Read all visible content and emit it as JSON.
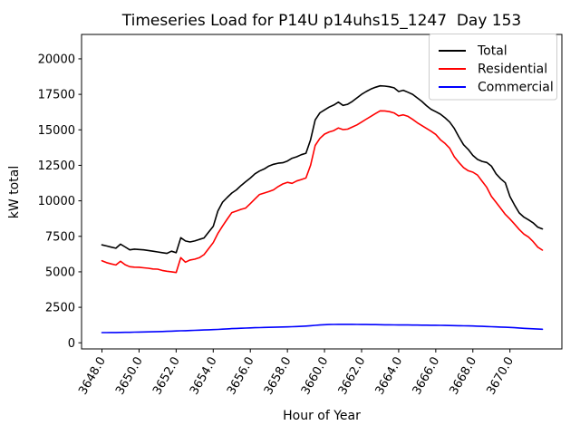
{
  "title": "Timeseries Load for P14U p14uhs15_1247  Day 153",
  "chart_data": {
    "type": "line",
    "title": "Timeseries Load for P14U p14uhs15_1247  Day 153",
    "xlabel": "Hour of Year",
    "ylabel": "kW total",
    "xlim": [
      3646.9,
      3672.8
    ],
    "ylim": [
      -430,
      21720
    ],
    "grid": false,
    "legend_position": "upper right",
    "xticks": [
      {
        "v": 3648,
        "label": "3648.0"
      },
      {
        "v": 3650,
        "label": "3650.0"
      },
      {
        "v": 3652,
        "label": "3652.0"
      },
      {
        "v": 3654,
        "label": "3654.0"
      },
      {
        "v": 3656,
        "label": "3656.0"
      },
      {
        "v": 3658,
        "label": "3658.0"
      },
      {
        "v": 3660,
        "label": "3660.0"
      },
      {
        "v": 3662,
        "label": "3662.0"
      },
      {
        "v": 3664,
        "label": "3664.0"
      },
      {
        "v": 3666,
        "label": "3666.0"
      },
      {
        "v": 3668,
        "label": "3668.0"
      },
      {
        "v": 3670,
        "label": "3670.0"
      }
    ],
    "yticks": [
      {
        "v": 0,
        "label": "0"
      },
      {
        "v": 2500,
        "label": "2500"
      },
      {
        "v": 5000,
        "label": "5000"
      },
      {
        "v": 7500,
        "label": "7500"
      },
      {
        "v": 10000,
        "label": "10000"
      },
      {
        "v": 12500,
        "label": "12500"
      },
      {
        "v": 15000,
        "label": "15000"
      },
      {
        "v": 17500,
        "label": "17500"
      },
      {
        "v": 20000,
        "label": "20000"
      }
    ],
    "x_start": 3648.0,
    "x_step": 0.25,
    "series": [
      {
        "name": "Total",
        "color": "#000000",
        "values": [
          6900,
          6820,
          6740,
          6660,
          6950,
          6750,
          6550,
          6600,
          6570,
          6550,
          6500,
          6450,
          6400,
          6350,
          6300,
          6450,
          6350,
          7400,
          7170,
          7100,
          7170,
          7280,
          7380,
          7800,
          8200,
          9280,
          9900,
          10230,
          10550,
          10770,
          11080,
          11350,
          11600,
          11900,
          12100,
          12250,
          12450,
          12570,
          12650,
          12680,
          12800,
          13000,
          13100,
          13250,
          13350,
          14300,
          15700,
          16200,
          16400,
          16600,
          16750,
          16950,
          16720,
          16800,
          17000,
          17250,
          17500,
          17700,
          17870,
          18000,
          18100,
          18080,
          18040,
          17960,
          17700,
          17790,
          17650,
          17500,
          17250,
          17000,
          16700,
          16450,
          16280,
          16100,
          15850,
          15550,
          15100,
          14500,
          13950,
          13620,
          13200,
          12920,
          12780,
          12700,
          12450,
          11900,
          11550,
          11270,
          10300,
          9700,
          9150,
          8850,
          8660,
          8450,
          8150,
          8020
        ]
      },
      {
        "name": "Residential",
        "color": "#ff0000",
        "values": [
          5780,
          5650,
          5560,
          5480,
          5740,
          5500,
          5360,
          5330,
          5320,
          5280,
          5250,
          5200,
          5190,
          5100,
          5040,
          5000,
          4950,
          6000,
          5680,
          5830,
          5890,
          5990,
          6210,
          6630,
          7060,
          7700,
          8210,
          8700,
          9170,
          9280,
          9400,
          9490,
          9800,
          10130,
          10450,
          10550,
          10650,
          10770,
          11000,
          11190,
          11300,
          11230,
          11400,
          11500,
          11610,
          12500,
          13900,
          14400,
          14700,
          14850,
          14950,
          15130,
          15020,
          15050,
          15200,
          15350,
          15550,
          15750,
          15950,
          16150,
          16340,
          16330,
          16280,
          16190,
          15980,
          16060,
          15950,
          15740,
          15500,
          15300,
          15100,
          14900,
          14680,
          14300,
          14040,
          13700,
          13100,
          12700,
          12340,
          12120,
          12020,
          11810,
          11380,
          10950,
          10320,
          9890,
          9470,
          9040,
          8720,
          8360,
          7980,
          7660,
          7450,
          7130,
          6740,
          6530
        ]
      },
      {
        "name": "Commercial",
        "color": "#0000ff",
        "values": [
          720,
          722,
          725,
          728,
          732,
          736,
          740,
          748,
          755,
          762,
          770,
          778,
          788,
          798,
          808,
          820,
          832,
          844,
          856,
          868,
          880,
          892,
          904,
          916,
          928,
          945,
          962,
          980,
          998,
          1012,
          1026,
          1040,
          1052,
          1062,
          1072,
          1082,
          1090,
          1098,
          1106,
          1113,
          1120,
          1132,
          1145,
          1160,
          1180,
          1205,
          1230,
          1255,
          1275,
          1288,
          1295,
          1300,
          1302,
          1300,
          1297,
          1293,
          1290,
          1286,
          1282,
          1278,
          1274,
          1270,
          1266,
          1262,
          1258,
          1255,
          1252,
          1250,
          1247,
          1244,
          1241,
          1238,
          1234,
          1230,
          1225,
          1219,
          1213,
          1206,
          1199,
          1191,
          1183,
          1172,
          1160,
          1146,
          1132,
          1120,
          1108,
          1095,
          1080,
          1062,
          1042,
          1022,
          1002,
          985,
          968,
          952
        ]
      }
    ]
  }
}
